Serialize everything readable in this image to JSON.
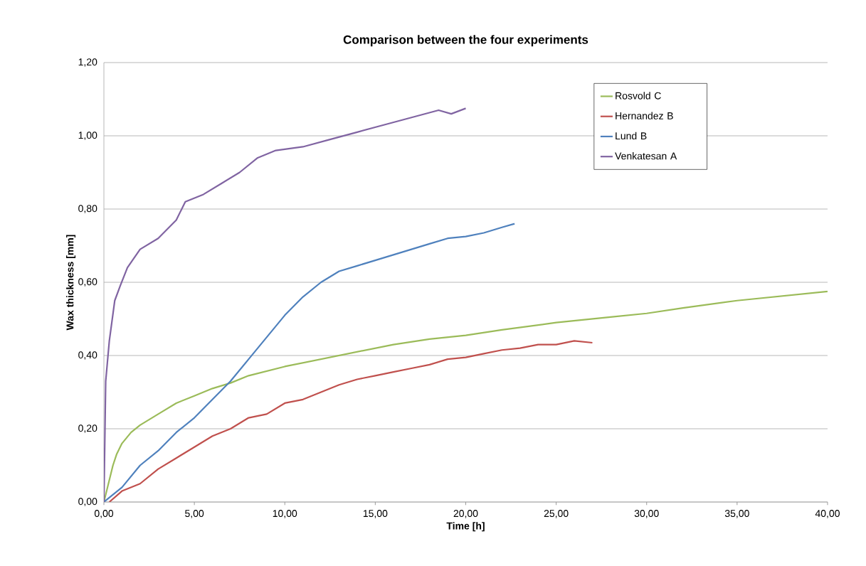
{
  "chart_data": {
    "type": "line",
    "title": "Comparison between the four experiments",
    "xlabel": "Time [h]",
    "ylabel": "Wax thickness [mm]",
    "xlim": [
      0,
      40
    ],
    "ylim": [
      0,
      1.2
    ],
    "xticks": [
      {
        "value": 0,
        "label": "0,00"
      },
      {
        "value": 5,
        "label": "5,00"
      },
      {
        "value": 10,
        "label": "10,00"
      },
      {
        "value": 15,
        "label": "15,00"
      },
      {
        "value": 20,
        "label": "20,00"
      },
      {
        "value": 25,
        "label": "25,00"
      },
      {
        "value": 30,
        "label": "30,00"
      },
      {
        "value": 35,
        "label": "35,00"
      },
      {
        "value": 40,
        "label": "40,00"
      }
    ],
    "yticks": [
      {
        "value": 0,
        "label": "0,00"
      },
      {
        "value": 0.2,
        "label": "0,20"
      },
      {
        "value": 0.4,
        "label": "0,40"
      },
      {
        "value": 0.6,
        "label": "0,60"
      },
      {
        "value": 0.8,
        "label": "0,80"
      },
      {
        "value": 1.0,
        "label": "1,00"
      },
      {
        "value": 1.2,
        "label": "1,20"
      }
    ],
    "grid": "y",
    "legend": "top right",
    "series": [
      {
        "name": "Rosvold C",
        "color": "#9bbb59",
        "x": [
          0,
          0.5,
          0.7,
          1,
          1.5,
          2,
          3,
          4,
          5,
          6,
          7,
          8,
          10,
          12,
          14,
          16,
          18,
          20,
          22,
          25,
          28,
          30,
          32,
          35,
          40
        ],
        "values": [
          0,
          0.1,
          0.13,
          0.16,
          0.19,
          0.21,
          0.24,
          0.27,
          0.29,
          0.31,
          0.325,
          0.345,
          0.37,
          0.39,
          0.41,
          0.43,
          0.445,
          0.455,
          0.47,
          0.49,
          0.505,
          0.515,
          0.53,
          0.55,
          0.575
        ]
      },
      {
        "name": "Hernandez B",
        "color": "#c0504d",
        "x": [
          0.3,
          1,
          2,
          3,
          4,
          5,
          6,
          7,
          8,
          9,
          10,
          11,
          12,
          13,
          14,
          15,
          16,
          17,
          18,
          19,
          20,
          21,
          22,
          23,
          24,
          25,
          26,
          27
        ],
        "values": [
          0,
          0.03,
          0.05,
          0.09,
          0.12,
          0.15,
          0.18,
          0.2,
          0.23,
          0.24,
          0.27,
          0.28,
          0.3,
          0.32,
          0.335,
          0.345,
          0.355,
          0.365,
          0.375,
          0.39,
          0.395,
          0.405,
          0.415,
          0.42,
          0.43,
          0.43,
          0.44,
          0.435
        ]
      },
      {
        "name": "Lund B",
        "color": "#4f81bd",
        "x": [
          0,
          1,
          2,
          3,
          4,
          5,
          6,
          7,
          8,
          9,
          10,
          11,
          12,
          13,
          14,
          15,
          16,
          17,
          18,
          19,
          20,
          21,
          22,
          22.7
        ],
        "values": [
          0,
          0.04,
          0.1,
          0.14,
          0.19,
          0.23,
          0.28,
          0.33,
          0.39,
          0.45,
          0.51,
          0.56,
          0.6,
          0.63,
          0.645,
          0.66,
          0.675,
          0.69,
          0.705,
          0.72,
          0.725,
          0.735,
          0.75,
          0.76
        ]
      },
      {
        "name": "Venkatesan A",
        "color": "#8064a2",
        "x": [
          0,
          0.1,
          0.3,
          0.6,
          0.9,
          1.3,
          2,
          3,
          4,
          4.5,
          5.5,
          6.5,
          7.5,
          8.5,
          9.5,
          11,
          12.5,
          14,
          15.5,
          17,
          18.5,
          19.2,
          20
        ],
        "values": [
          0,
          0.33,
          0.44,
          0.55,
          0.59,
          0.64,
          0.69,
          0.72,
          0.77,
          0.82,
          0.84,
          0.87,
          0.9,
          0.94,
          0.96,
          0.97,
          0.99,
          1.01,
          1.03,
          1.05,
          1.07,
          1.06,
          1.075
        ]
      }
    ]
  }
}
